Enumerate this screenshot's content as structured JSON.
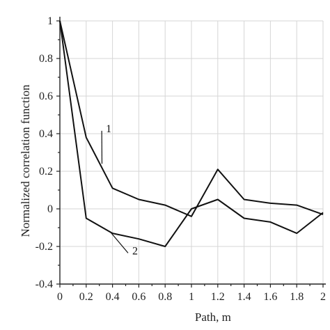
{
  "chart_data": {
    "type": "line",
    "xlabel": "Path, m",
    "ylabel": "Normalized correlation function",
    "xlim": [
      0,
      2
    ],
    "ylim": [
      -0.4,
      1
    ],
    "x_ticks": [
      "0",
      "0.2",
      "0.4",
      "0.6",
      "0.8",
      "1",
      "1.2",
      "1.4",
      "1.6",
      "1.8",
      "2"
    ],
    "y_ticks": [
      "1",
      "0.8",
      "0.6",
      "0.4",
      "0.2",
      "0",
      "-0.2",
      "-0.4"
    ],
    "grid": true,
    "x": [
      0,
      0.2,
      0.4,
      0.6,
      0.8,
      1.0,
      1.2,
      1.4,
      1.6,
      1.8,
      2.0
    ],
    "series": [
      {
        "label": "1",
        "values": [
          1.0,
          0.38,
          0.11,
          0.05,
          0.02,
          -0.04,
          0.21,
          0.05,
          0.03,
          0.02,
          -0.03
        ],
        "label_at": [
          0.35,
          0.43
        ]
      },
      {
        "label": "2",
        "values": [
          1.0,
          -0.05,
          -0.13,
          -0.16,
          -0.2,
          0.0,
          0.05,
          -0.05,
          -0.07,
          -0.13,
          -0.02
        ],
        "label_at": [
          0.55,
          -0.22
        ]
      }
    ],
    "line_color": "#111111",
    "grid_color": "#d6d6d6"
  }
}
